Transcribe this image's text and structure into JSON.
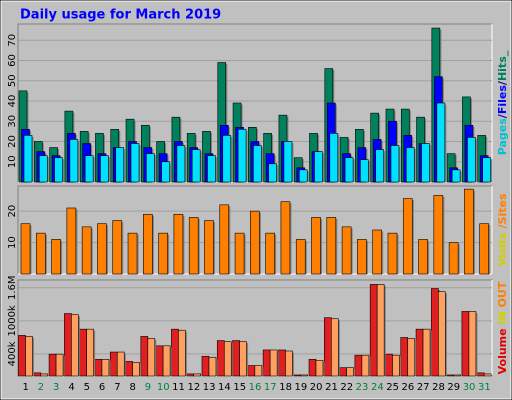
{
  "chart_data": {
    "type": "bar",
    "title": "Daily usage for March 2019",
    "categories": [
      "1",
      "2",
      "3",
      "4",
      "5",
      "6",
      "7",
      "8",
      "9",
      "10",
      "11",
      "12",
      "13",
      "14",
      "15",
      "16",
      "17",
      "18",
      "19",
      "20",
      "21",
      "22",
      "23",
      "24",
      "25",
      "26",
      "27",
      "28",
      "29",
      "30",
      "31"
    ],
    "category_colors": [
      "#000000",
      "#008040",
      "#008040",
      "#000000",
      "#000000",
      "#000000",
      "#000000",
      "#000000",
      "#008040",
      "#008040",
      "#000000",
      "#000000",
      "#000000",
      "#000000",
      "#000000",
      "#008040",
      "#008040",
      "#000000",
      "#000000",
      "#000000",
      "#000000",
      "#000000",
      "#008040",
      "#008040",
      "#000000",
      "#000000",
      "#000000",
      "#000000",
      "#000000",
      "#008040",
      "#008040"
    ],
    "panels": [
      {
        "ylim": [
          0,
          78
        ],
        "yticks": [
          10,
          20,
          30,
          40,
          50,
          60,
          70
        ],
        "legend": [
          {
            "text": "Pages",
            "color": "#00c0d0"
          },
          {
            "text": "/",
            "color": "#0000a0"
          },
          {
            "text": "Files",
            "color": "#0000ff"
          },
          {
            "text": "/",
            "color": "#0000a0"
          },
          {
            "text": "Hits",
            "color": "#00805c"
          },
          {
            "text": "_",
            "color": "#00805c"
          }
        ],
        "series": [
          {
            "color": "#00805c",
            "values": [
              45,
              20,
              17,
              35,
              25,
              24,
              26,
              31,
              28,
              20,
              32,
              24,
              25,
              59,
              39,
              27,
              24,
              33,
              12,
              24,
              56,
              22,
              26,
              34,
              36,
              36,
              32,
              76,
              14,
              42,
              23
            ]
          },
          {
            "color": "#0000ff",
            "values": [
              26,
              15,
              13,
              24,
              19,
              14,
              17,
              20,
              17,
              14,
              20,
              17,
              14,
              28,
              27,
              20,
              14,
              20,
              7,
              15,
              39,
              14,
              17,
              21,
              30,
              23,
              19,
              52,
              7,
              28,
              13
            ]
          },
          {
            "color": "#00e0ff",
            "values": [
              23,
              13,
              12,
              21,
              13,
              13,
              17,
              19,
              14,
              10,
              18,
              16,
              13,
              23,
              26,
              18,
              9,
              20,
              6,
              15,
              24,
              12,
              11,
              16,
              18,
              17,
              19,
              39,
              6,
              22,
              12
            ]
          }
        ]
      },
      {
        "ylim": [
          0,
          28
        ],
        "yticks": [
          10,
          20
        ],
        "legend": [
          {
            "text": "Visits",
            "color": "#d0d000"
          },
          {
            "text": " /",
            "color": "#ff8000"
          },
          {
            "text": "Sites",
            "color": "#ff8000"
          }
        ],
        "series": [
          {
            "color": "#ff8000",
            "values": [
              16,
              13,
              11,
              21,
              15,
              16,
              17,
              13,
              19,
              13,
              19,
              18,
              17,
              22,
              13,
              20,
              13,
              23,
              11,
              18,
              18,
              15,
              11,
              14,
              13,
              24,
              11,
              25,
              10,
              27,
              16
            ]
          }
        ]
      },
      {
        "ylim": [
          0,
          1740000
        ],
        "yticks": [
          {
            "value": 400000,
            "label": "400k"
          },
          {
            "value": 1000000,
            "label": "1000k"
          },
          {
            "value": 1600000,
            "label": "1.6M"
          }
        ],
        "legend": [
          {
            "text": "Volume",
            "color": "#e00000"
          },
          {
            "text": "  IN",
            "color": "#d0d000"
          },
          {
            "text": "  OUT",
            "color": "#ff8000"
          }
        ],
        "series": [
          {
            "color": "#e02020",
            "values": [
              736000,
              57000,
              396000,
              1132000,
              849000,
              302000,
              434000,
              264000,
              717000,
              547000,
              849000,
              38000,
              358000,
              642000,
              642000,
              189000,
              472000,
              472000,
              19000,
              302000,
              1057000,
              151000,
              377000,
              1660000,
              396000,
              698000,
              849000,
              1585000,
              19000,
              1170000,
              57000
            ]
          },
          {
            "color": "#ffa060",
            "values": [
              717000,
              38000,
              396000,
              1113000,
              849000,
              302000,
              434000,
              245000,
              679000,
              547000,
              830000,
              38000,
              340000,
              623000,
              623000,
              189000,
              472000,
              453000,
              19000,
              283000,
              1038000,
              151000,
              377000,
              1660000,
              377000,
              679000,
              849000,
              1528000,
              19000,
              1170000,
              38000
            ]
          }
        ]
      }
    ]
  }
}
